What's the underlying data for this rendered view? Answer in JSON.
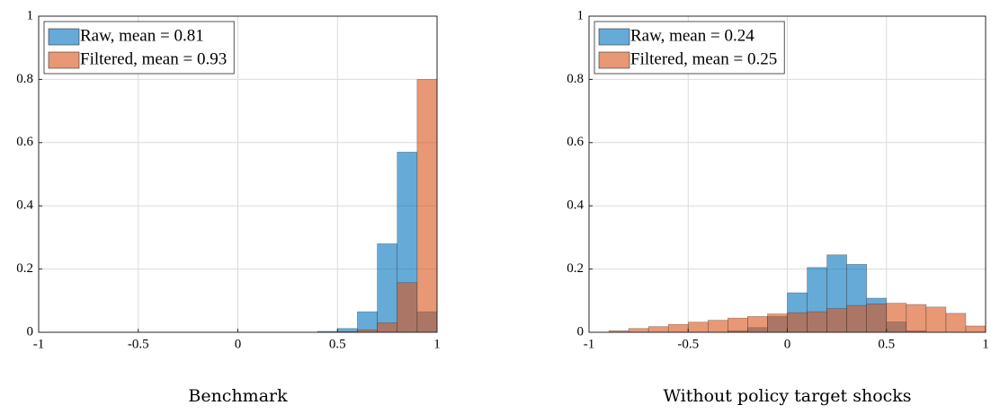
{
  "chart_data": [
    {
      "type": "histogram",
      "xlabel": "Benchmark",
      "bins": [
        -1,
        -0.9,
        -0.8,
        -0.7,
        -0.6,
        -0.5,
        -0.4,
        -0.3,
        -0.2,
        -0.1,
        0,
        0.1,
        0.2,
        0.3,
        0.4,
        0.5,
        0.6,
        0.7,
        0.8,
        0.9,
        1
      ],
      "series": [
        {
          "name": "Raw, mean = 0.81",
          "color": "#0072bd",
          "values": [
            0,
            0,
            0,
            0,
            0,
            0,
            0,
            0,
            0,
            0,
            0,
            0,
            0,
            0,
            0.003,
            0.012,
            0.065,
            0.28,
            0.57,
            0.065
          ]
        },
        {
          "name": "Filtered, mean = 0.93",
          "color": "#d95319",
          "values": [
            0,
            0,
            0,
            0,
            0,
            0,
            0,
            0,
            0,
            0,
            0,
            0,
            0,
            0,
            0,
            0.002,
            0.008,
            0.03,
            0.157,
            0.8
          ]
        }
      ],
      "xlim": [
        -1,
        1
      ],
      "ylim": [
        0,
        1
      ],
      "xticks": [
        -1,
        -0.5,
        0,
        0.5,
        1
      ],
      "yticks": [
        0,
        0.2,
        0.4,
        0.6,
        0.8,
        1
      ],
      "grid": true,
      "legend": "top-left"
    },
    {
      "type": "histogram",
      "xlabel": "Without policy target shocks",
      "bins": [
        -1,
        -0.9,
        -0.8,
        -0.7,
        -0.6,
        -0.5,
        -0.4,
        -0.3,
        -0.2,
        -0.1,
        0,
        0.1,
        0.2,
        0.3,
        0.4,
        0.5,
        0.6,
        0.7,
        0.8,
        0.9,
        1
      ],
      "series": [
        {
          "name": "Raw, mean = 0.24",
          "color": "#0072bd",
          "values": [
            0,
            0,
            0,
            0,
            0,
            0,
            0,
            0.005,
            0.015,
            0.05,
            0.125,
            0.205,
            0.245,
            0.215,
            0.108,
            0.033,
            0.005,
            0,
            0,
            0
          ]
        },
        {
          "name": "Filtered, mean = 0.25",
          "color": "#d95319",
          "values": [
            0,
            0.005,
            0.012,
            0.018,
            0.025,
            0.032,
            0.038,
            0.045,
            0.05,
            0.058,
            0.062,
            0.065,
            0.075,
            0.085,
            0.09,
            0.092,
            0.088,
            0.08,
            0.06,
            0.02
          ]
        }
      ],
      "xlim": [
        -1,
        1
      ],
      "ylim": [
        0,
        1
      ],
      "xticks": [
        -1,
        -0.5,
        0,
        0.5,
        1
      ],
      "yticks": [
        0,
        0.2,
        0.4,
        0.6,
        0.8,
        1
      ],
      "grid": true,
      "legend": "top-left"
    }
  ]
}
